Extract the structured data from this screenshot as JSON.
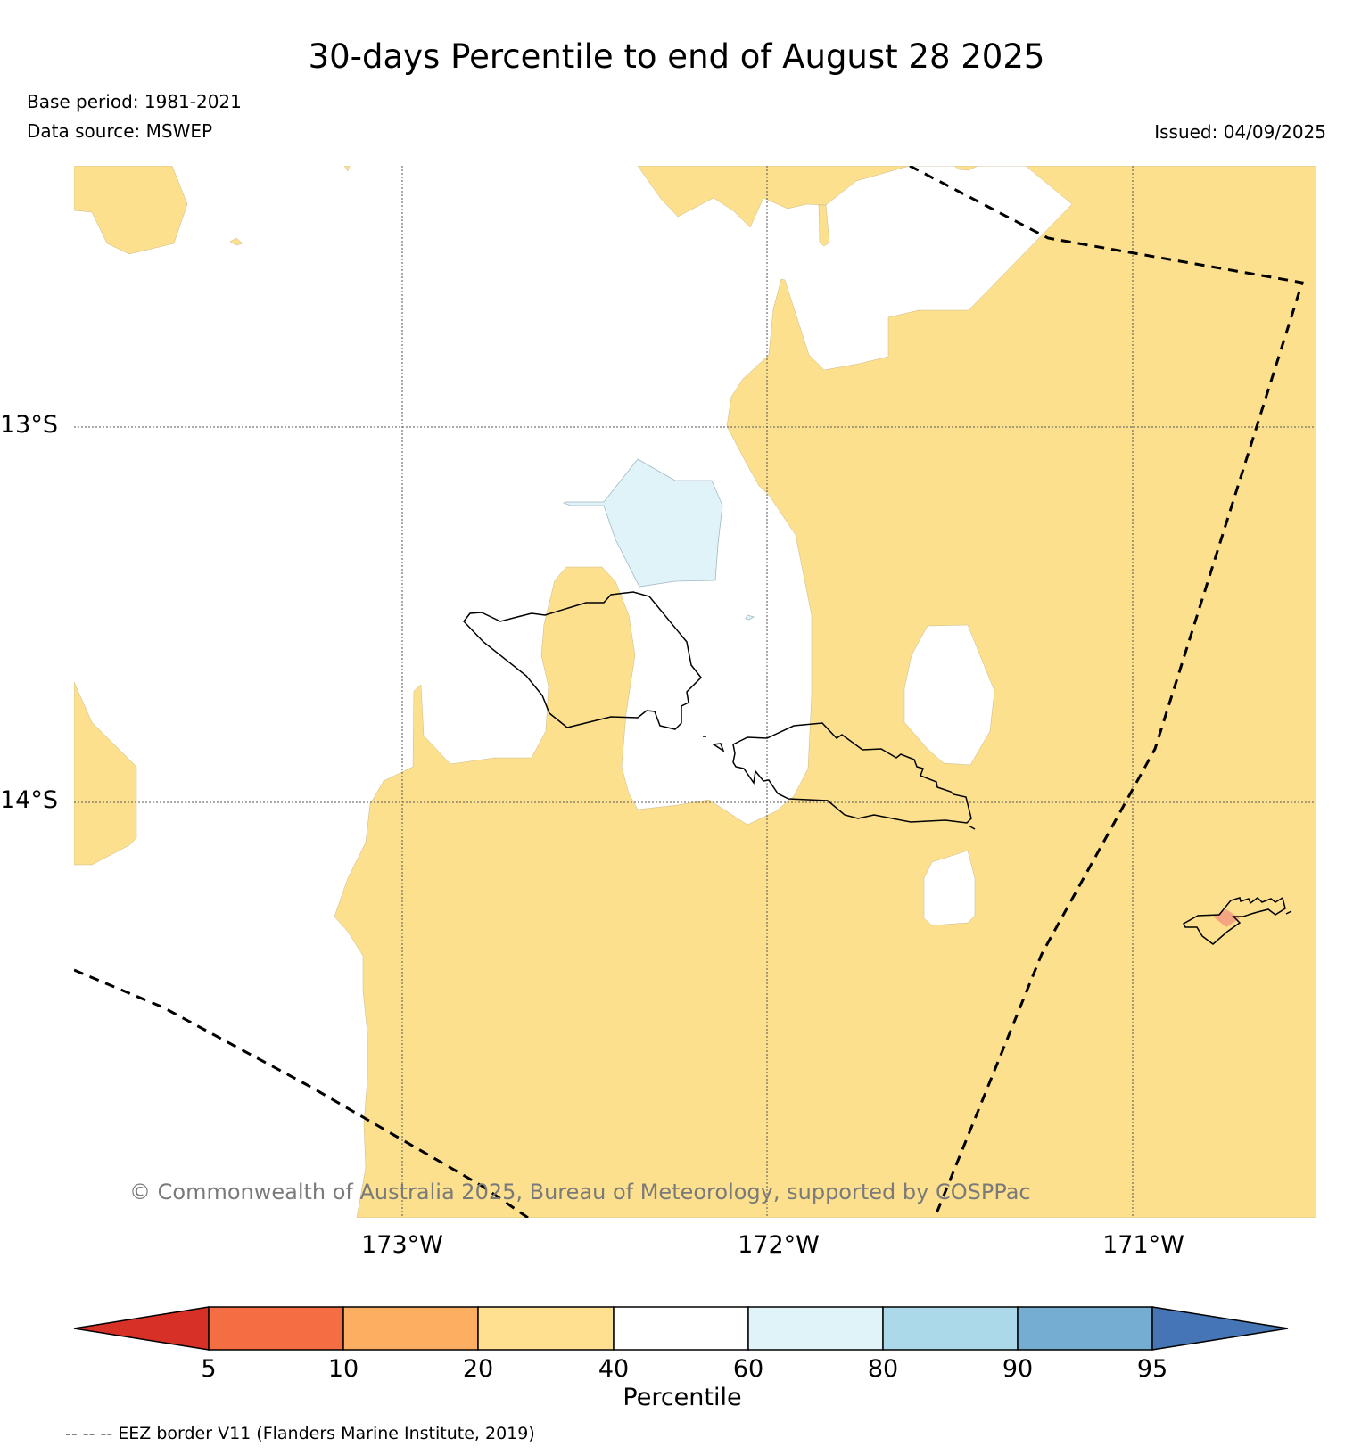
{
  "title": "30-days Percentile to end of August 28 2025",
  "base_period": "Base period: 1981-2021",
  "data_source": "Data source: MSWEP",
  "issued": "Issued: 04/09/2025",
  "copyright": "© Commonwealth of Australia 2025, Bureau of Meteorology, supported by COSPPac",
  "longitude_labels": [
    "173°W",
    "172°W",
    "171°W"
  ],
  "latitude_labels": [
    "13°S",
    "14°S"
  ],
  "colorbar": {
    "label": "Percentile",
    "ticks": [
      "5",
      "10",
      "20",
      "40",
      "60",
      "80",
      "90",
      "95"
    ],
    "colors": [
      "#d73027",
      "#f46d43",
      "#fdae61",
      "#fee090",
      "#ffffff",
      "#e0f3f8",
      "#abd9e9",
      "#74add1",
      "#4575b4"
    ]
  },
  "footnote": "-- -- -- EEZ border V11 (Flanders Marine Institute, 2019)",
  "legend_colors": {
    "percentile_20_40": "#fce08e",
    "percentile_60_80": "#e0f3f8",
    "percentile_10_20": "#f4a582"
  }
}
